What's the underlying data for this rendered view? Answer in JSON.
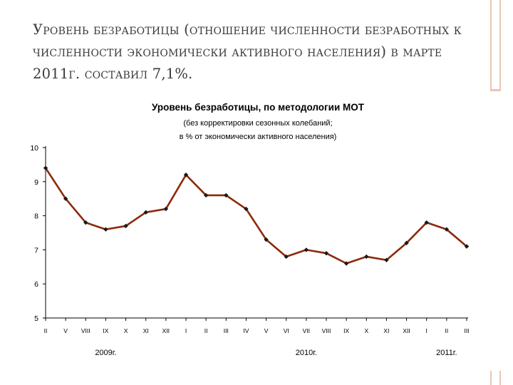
{
  "slide": {
    "heading": "Уровень безработицы (отношение численности безработных к численности экономически активного населения) в марте 2011г. составил 7,1%."
  },
  "colors": {
    "line": "#8b2a0a",
    "marker": "#1a1a1a",
    "axis": "#000000",
    "deco": "#e8c7b4"
  },
  "chart_data": {
    "type": "line",
    "title": "Уровень безработицы, по методологии МОТ",
    "subtitle_lines": [
      "(без корректировки сезонных колебаний;",
      "в % от экономически активного населения)"
    ],
    "xlabel": "",
    "ylabel": "",
    "ylim": [
      5,
      10
    ],
    "yticks": [
      "5",
      "6",
      "7",
      "8",
      "9",
      "10"
    ],
    "grid": false,
    "categories": [
      "II",
      "V",
      "VIII",
      "IX",
      "X",
      "XI",
      "XII",
      "I",
      "II",
      "III",
      "IV",
      "V",
      "VI",
      "VII",
      "VIII",
      "IX",
      "X",
      "XI",
      "XII",
      "I",
      "II",
      "III"
    ],
    "values": [
      9.4,
      8.5,
      7.8,
      7.6,
      7.7,
      8.1,
      8.2,
      9.2,
      8.6,
      8.6,
      8.2,
      7.3,
      6.8,
      7.0,
      6.9,
      6.6,
      6.8,
      6.7,
      7.2,
      7.8,
      7.6,
      7.1
    ],
    "year_labels": [
      {
        "label": "2009г.",
        "category_index": 3
      },
      {
        "label": "2010г.",
        "category_index": 13
      },
      {
        "label": "2011г.",
        "category_index": 20
      }
    ]
  }
}
